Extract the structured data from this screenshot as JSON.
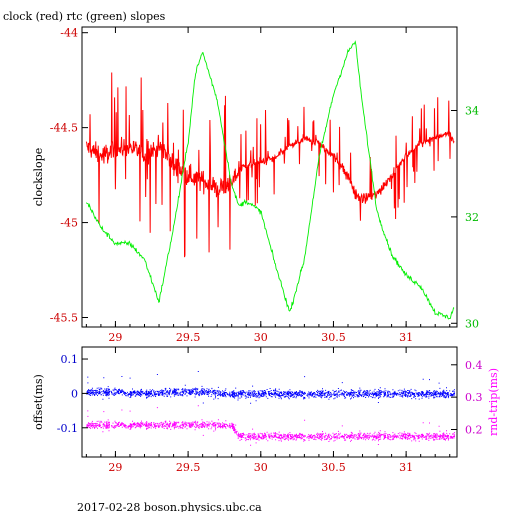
{
  "page": {
    "title": "clock (red) rtc (green) slopes",
    "footer": "2017-02-28  boson.physics.ubc.ca"
  },
  "colors": {
    "red": "#ff0000",
    "green": "#00ee00",
    "blue": "#0000ff",
    "magenta": "#ff00ff",
    "frame": "#000000",
    "left_ticks_top": "#cc0000",
    "x_ticks": "#cc0000",
    "right_ticks_top": "#00bb00",
    "left_ticks_bottom": "#0000cc",
    "right_ticks_bottom": "#cc00cc"
  },
  "chart_data": [
    {
      "type": "line",
      "title": "clock (red) rtc (green) slopes",
      "xlabel": "",
      "ylabel": "clockslope",
      "xlim": [
        28.77,
        31.35
      ],
      "ylim": [
        -45.55,
        -43.97
      ],
      "y2lim": [
        29.93,
        35.57
      ],
      "xticks": [
        "29",
        "29.5",
        "30",
        "30.5",
        "31"
      ],
      "xtick_values": [
        29,
        29.5,
        30,
        30.5,
        31
      ],
      "yticks": [
        "-44",
        "-44.5",
        "-45",
        "-45.5"
      ],
      "ytick_values": [
        -44,
        -44.5,
        -45,
        -45.5
      ],
      "y2ticks": [
        "34",
        "32",
        "30"
      ],
      "y2tick_values": [
        34,
        32,
        30
      ],
      "grid": false,
      "series": [
        {
          "name": "clock",
          "axis": "left",
          "color": "red",
          "style": "noisy line with spikes",
          "x": [
            28.8,
            28.9,
            29.0,
            29.1,
            29.2,
            29.3,
            29.4,
            29.5,
            29.6,
            29.7,
            29.8,
            29.85,
            29.9,
            30.0,
            30.1,
            30.2,
            30.3,
            30.4,
            30.5,
            30.6,
            30.65,
            30.7,
            30.8,
            30.9,
            31.0,
            31.1,
            31.2,
            31.3,
            31.33
          ],
          "values": [
            -44.6,
            -44.65,
            -44.62,
            -44.6,
            -44.65,
            -44.6,
            -44.7,
            -44.75,
            -44.78,
            -44.82,
            -44.8,
            -44.72,
            -44.7,
            -44.68,
            -44.66,
            -44.6,
            -44.56,
            -44.58,
            -44.65,
            -44.75,
            -44.85,
            -44.88,
            -44.85,
            -44.75,
            -44.65,
            -44.58,
            -44.55,
            -44.53,
            -44.58
          ]
        },
        {
          "name": "rtc",
          "axis": "right",
          "color": "green",
          "style": "thin line",
          "x": [
            28.8,
            28.9,
            29.0,
            29.1,
            29.2,
            29.3,
            29.4,
            29.5,
            29.55,
            29.6,
            29.7,
            29.8,
            29.85,
            29.9,
            30.0,
            30.1,
            30.2,
            30.3,
            30.4,
            30.5,
            30.6,
            30.65,
            30.7,
            30.8,
            30.9,
            31.0,
            31.1,
            31.2,
            31.3,
            31.33
          ],
          "values": [
            32.3,
            31.8,
            31.5,
            31.5,
            31.2,
            30.4,
            31.8,
            33.4,
            34.7,
            35.1,
            34.2,
            32.6,
            32.2,
            32.3,
            32.1,
            31.1,
            30.2,
            31.2,
            33.1,
            34.3,
            35.1,
            35.3,
            34.1,
            32.1,
            31.3,
            30.9,
            30.7,
            30.2,
            30.1,
            30.3
          ]
        }
      ]
    },
    {
      "type": "scatter",
      "xlabel": "",
      "ylabel": "offset(ms)",
      "y2label": "rnd-trip(ms)",
      "xlim": [
        28.77,
        31.35
      ],
      "ylim": [
        -0.185,
        0.135
      ],
      "y2lim": [
        0.115,
        0.455
      ],
      "xticks": [
        "29",
        "29.5",
        "30",
        "30.5",
        "31"
      ],
      "xtick_values": [
        29,
        29.5,
        30,
        30.5,
        31
      ],
      "yticks": [
        "0.1",
        "0",
        "-0.1"
      ],
      "ytick_values": [
        0.1,
        0,
        -0.1
      ],
      "y2ticks": [
        "0.4",
        "0.3",
        "0.2"
      ],
      "y2tick_values": [
        0.4,
        0.3,
        0.2
      ],
      "grid": false,
      "series": [
        {
          "name": "offset",
          "axis": "left",
          "color": "blue",
          "style": "dense dots",
          "x": [
            28.8,
            29.0,
            29.2,
            29.4,
            29.6,
            29.8,
            29.85,
            30.0,
            30.2,
            30.4,
            30.6,
            30.8,
            31.0,
            31.2,
            31.33
          ],
          "values": [
            0.005,
            0.005,
            0.0,
            0.005,
            0.005,
            0.0,
            0.0,
            0.0,
            0.0,
            0.0,
            0.0,
            0.0,
            0.0,
            0.0,
            0.0
          ]
        },
        {
          "name": "rnd-trip",
          "axis": "right",
          "color": "magenta",
          "style": "dense dots",
          "x": [
            28.8,
            29.0,
            29.2,
            29.4,
            29.6,
            29.8,
            29.85,
            30.0,
            30.2,
            30.4,
            30.6,
            30.8,
            31.0,
            31.2,
            31.33
          ],
          "values": [
            0.215,
            0.215,
            0.215,
            0.215,
            0.215,
            0.215,
            0.18,
            0.18,
            0.18,
            0.18,
            0.18,
            0.18,
            0.18,
            0.18,
            0.18
          ]
        }
      ]
    }
  ]
}
